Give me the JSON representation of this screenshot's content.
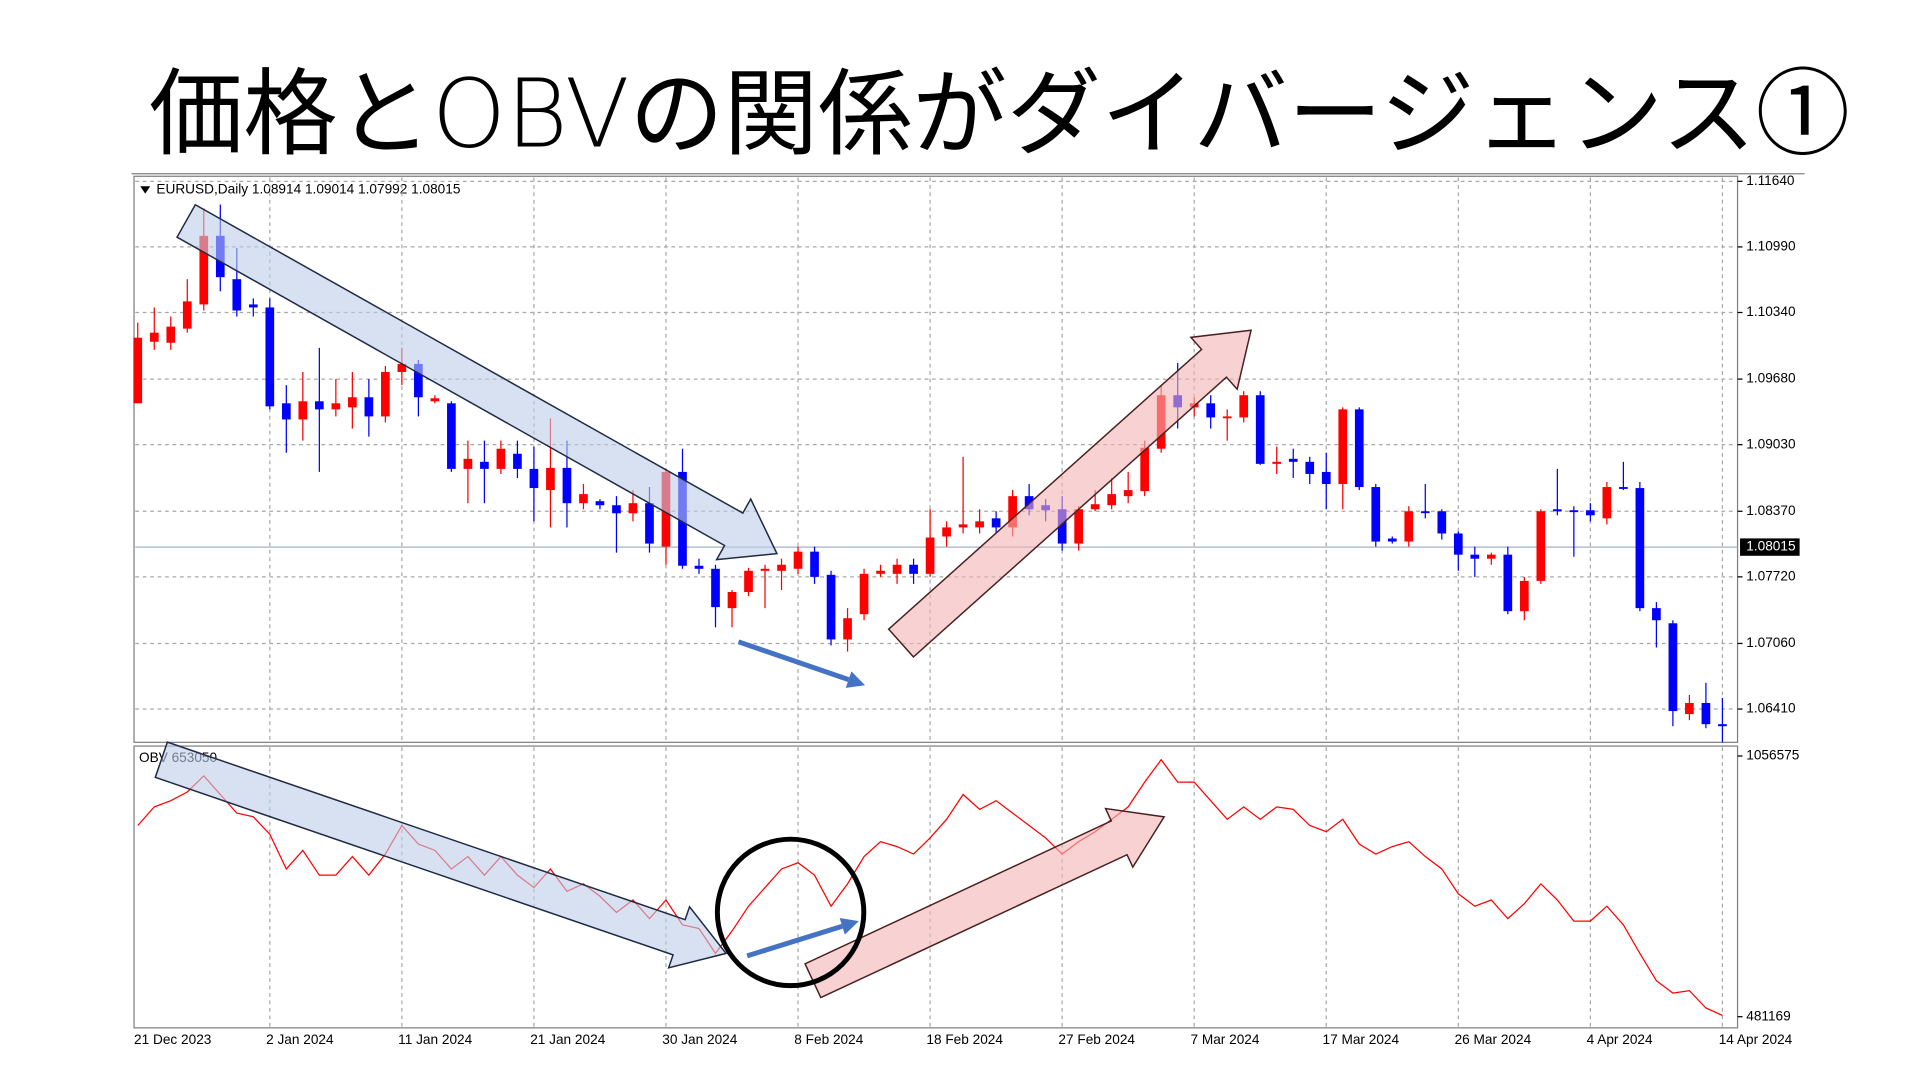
{
  "title": "価格とOBVの関係がダイバージェンス①",
  "chart_data": [
    {
      "type": "candlestick",
      "title": "EURUSD,Daily  1.08914 1.09014 1.07992 1.08015",
      "categories": [
        "21 Dec 2023",
        null,
        null,
        null,
        null,
        null,
        null,
        null,
        "2 Jan 2024",
        null,
        null,
        null,
        null,
        null,
        null,
        null,
        "11 Jan 2024",
        null,
        null,
        null,
        null,
        null,
        null,
        null,
        "21 Jan 2024",
        null,
        null,
        null,
        null,
        null,
        null,
        null,
        "30 Jan 2024",
        null,
        null,
        null,
        null,
        null,
        null,
        null,
        "8 Feb 2024",
        null,
        null,
        null,
        null,
        null,
        null,
        null,
        "18 Feb 2024",
        null,
        null,
        null,
        null,
        null,
        null,
        null,
        "27 Feb 2024",
        null,
        null,
        null,
        null,
        null,
        null,
        null,
        "7 Mar 2024",
        null,
        null,
        null,
        null,
        null,
        null,
        null,
        "17 Mar 2024",
        null,
        null,
        null,
        null,
        null,
        null,
        null,
        "26 Mar 2024",
        null,
        null,
        null,
        null,
        null,
        null,
        null,
        "4 Apr 2024",
        null,
        null,
        null,
        null,
        null,
        null,
        null,
        "14 Apr 2024"
      ],
      "open": [
        1.0944,
        1.1005,
        1.1004,
        1.1018,
        1.1042,
        1.111,
        1.1067,
        1.1042,
        1.1039,
        1.0944,
        1.0928,
        1.0946,
        1.0938,
        1.094,
        1.095,
        1.0931,
        1.0975,
        1.0983,
        1.0946,
        1.0944,
        1.0879,
        1.0886,
        1.0879,
        1.0894,
        1.0879,
        1.0858,
        1.088,
        1.0845,
        1.0847,
        1.0843,
        1.0835,
        1.0845,
        1.0802,
        1.0876,
        1.0783,
        1.078,
        1.0741,
        1.0757,
        1.0778,
        1.0778,
        1.078,
        1.0797,
        1.0774,
        1.071,
        1.0735,
        1.0775,
        1.0775,
        1.0784,
        1.0775,
        1.0812,
        1.0821,
        1.0821,
        1.083,
        1.0821,
        1.0852,
        1.0843,
        1.0839,
        1.0805,
        1.0839,
        1.0843,
        1.0852,
        1.0857,
        1.0899,
        1.0952,
        1.094,
        1.0944,
        1.093,
        1.093,
        1.0952,
        1.0884,
        1.0889,
        1.0886,
        1.0876,
        1.0864,
        1.0938,
        1.0861,
        1.081,
        1.0807,
        1.0837,
        1.0837,
        1.0815,
        1.0794,
        1.079,
        1.0794,
        1.0738,
        1.0768,
        1.0839,
        1.0838,
        1.0838,
        1.083,
        1.0861,
        1.086,
        1.0741,
        1.0726,
        1.0636,
        1.0647,
        1.0626
      ],
      "high": [
        1.1024,
        1.1039,
        1.103,
        1.1067,
        1.1137,
        1.1141,
        1.1098,
        1.1048,
        1.1048,
        1.0962,
        1.0975,
        1.0999,
        1.0968,
        1.0975,
        1.0968,
        1.0981,
        1.0999,
        1.0987,
        1.0952,
        1.0946,
        1.0907,
        1.0907,
        1.0907,
        1.0907,
        1.0901,
        1.0929,
        1.0907,
        1.0864,
        1.0849,
        1.0852,
        1.0858,
        1.0861,
        1.0879,
        1.0899,
        1.079,
        1.0784,
        1.0759,
        1.0781,
        1.0784,
        1.079,
        1.0802,
        1.0802,
        1.0778,
        1.0741,
        1.078,
        1.0784,
        1.079,
        1.079,
        1.0839,
        1.0827,
        1.0891,
        1.0839,
        1.0837,
        1.0858,
        1.0864,
        1.0849,
        1.0852,
        1.0842,
        1.0858,
        1.087,
        1.0876,
        1.0907,
        1.0962,
        1.0984,
        1.095,
        1.0952,
        1.0938,
        1.0956,
        1.0956,
        1.0901,
        1.0899,
        1.0891,
        1.0895,
        1.094,
        1.094,
        1.0864,
        1.0812,
        1.0842,
        1.0864,
        1.0839,
        1.0817,
        1.0802,
        1.0796,
        1.0802,
        1.0772,
        1.0839,
        1.0879,
        1.0842,
        1.0845,
        1.0866,
        1.0886,
        1.0866,
        1.0747,
        1.0729,
        1.0655,
        1.0667,
        1.0652
      ],
      "low": [
        1.0944,
        1.0997,
        1.0997,
        1.1014,
        1.1036,
        1.1055,
        1.103,
        1.103,
        1.0938,
        1.0895,
        1.0907,
        1.0876,
        1.0931,
        1.0919,
        1.0911,
        1.0925,
        1.0962,
        1.0931,
        1.0944,
        1.0876,
        1.0845,
        1.0845,
        1.0874,
        1.087,
        1.0827,
        1.0821,
        1.0821,
        1.0839,
        1.0839,
        1.0796,
        1.0827,
        1.0796,
        1.0784,
        1.078,
        1.0775,
        1.0722,
        1.0722,
        1.0753,
        1.0741,
        1.0759,
        1.0775,
        1.0765,
        1.0704,
        1.0698,
        1.0729,
        1.0772,
        1.0765,
        1.0765,
        1.0772,
        1.0802,
        1.0815,
        1.0815,
        1.0815,
        1.0812,
        1.0833,
        1.0827,
        1.0798,
        1.0798,
        1.0837,
        1.0839,
        1.0845,
        1.0852,
        1.0895,
        1.0919,
        1.0931,
        1.0919,
        1.0907,
        1.0925,
        1.0883,
        1.0874,
        1.087,
        1.0864,
        1.0839,
        1.0839,
        1.0858,
        1.0802,
        1.0805,
        1.0802,
        1.083,
        1.0809,
        1.0778,
        1.0772,
        1.0784,
        1.0735,
        1.0729,
        1.0765,
        1.0833,
        1.0792,
        1.0827,
        1.0824,
        1.0858,
        1.0738,
        1.0702,
        1.0624,
        1.063,
        1.0622,
        1.0608
      ],
      "close": [
        1.1009,
        1.1014,
        1.102,
        1.1045,
        1.111,
        1.1069,
        1.1036,
        1.1039,
        1.0941,
        1.0928,
        1.0946,
        1.0938,
        1.0944,
        1.095,
        1.0931,
        1.0975,
        1.0983,
        1.095,
        1.0949,
        1.0879,
        1.0889,
        1.0879,
        1.0899,
        1.0879,
        1.086,
        1.088,
        1.0845,
        1.0854,
        1.0843,
        1.0835,
        1.0845,
        1.0805,
        1.0876,
        1.0783,
        1.078,
        1.0742,
        1.0757,
        1.0778,
        1.078,
        1.0784,
        1.0797,
        1.0772,
        1.071,
        1.0731,
        1.0775,
        1.0778,
        1.0784,
        1.0775,
        1.0811,
        1.0821,
        1.0824,
        1.0827,
        1.0821,
        1.0852,
        1.0839,
        1.0838,
        1.0805,
        1.0839,
        1.0844,
        1.0854,
        1.0858,
        1.09,
        1.0952,
        1.094,
        1.0944,
        1.093,
        1.0931,
        1.0952,
        1.0884,
        1.0886,
        1.0886,
        1.0874,
        1.0864,
        1.0938,
        1.0861,
        1.0807,
        1.0807,
        1.0837,
        1.0836,
        1.0815,
        1.0794,
        1.079,
        1.0794,
        1.0738,
        1.0768,
        1.0837,
        1.0837,
        1.0837,
        1.0833,
        1.0861,
        1.086,
        1.0741,
        1.0729,
        1.0639,
        1.0647,
        1.0626,
        1.0624
      ],
      "up_color": "#ff0000",
      "down_color": "#0000ff",
      "last_price": 1.08015,
      "ylim": [
        1.0608,
        1.1169
      ],
      "yticks": [
        {
          "value": 1.1164,
          "label": "1.11640"
        },
        {
          "value": 1.1099,
          "label": "1.10990"
        },
        {
          "value": 1.1034,
          "label": "1.10340"
        },
        {
          "value": 1.0968,
          "label": "1.09680"
        },
        {
          "value": 1.0903,
          "label": "1.09030"
        },
        {
          "value": 1.0837,
          "label": "1.08370"
        },
        {
          "value": 1.0772,
          "label": "1.07720"
        },
        {
          "value": 1.0706,
          "label": "1.07060"
        },
        {
          "value": 1.0641,
          "label": "1.06410"
        }
      ],
      "grid": true
    },
    {
      "type": "line",
      "title": "OBV 653050",
      "values": [
        903135,
        944235,
        957935,
        977115,
        1012735,
        971635,
        930535,
        922315,
        883955,
        807235,
        848335,
        793535,
        793535,
        834635,
        793535,
        840115,
        903135,
        862035,
        848335,
        807235,
        834635,
        793535,
        834635,
        793535,
        766135,
        807235,
        757915,
        774355,
        746955,
        711335,
        738735,
        697635,
        738735,
        683935,
        675715,
        620915,
        670235,
        725035,
        766135,
        807235,
        820935,
        793535,
        725035,
        774355,
        834635,
        867515,
        856555,
        840115,
        875735,
        916835,
        971635,
        938755,
        957935,
        930535,
        903135,
        875735,
        840115,
        867515,
        889435,
        916835,
        944235,
        999035,
        1048355,
        999035,
        999035,
        957935,
        916835,
        944235,
        916835,
        944235,
        938755,
        903135,
        889435,
        916835,
        862035,
        840115,
        856555,
        867515,
        834635,
        807235,
        752435,
        725035,
        738735,
        697635,
        730515,
        774355,
        738735,
        692155,
        692155,
        725035,
        683935,
        620915,
        560635,
        533235,
        538715,
        500355,
        483915
      ],
      "color": "#ff0000",
      "ylim": [
        456509,
        1078495
      ],
      "yticks": [
        1056575,
        481169
      ],
      "grid": true
    }
  ]
}
